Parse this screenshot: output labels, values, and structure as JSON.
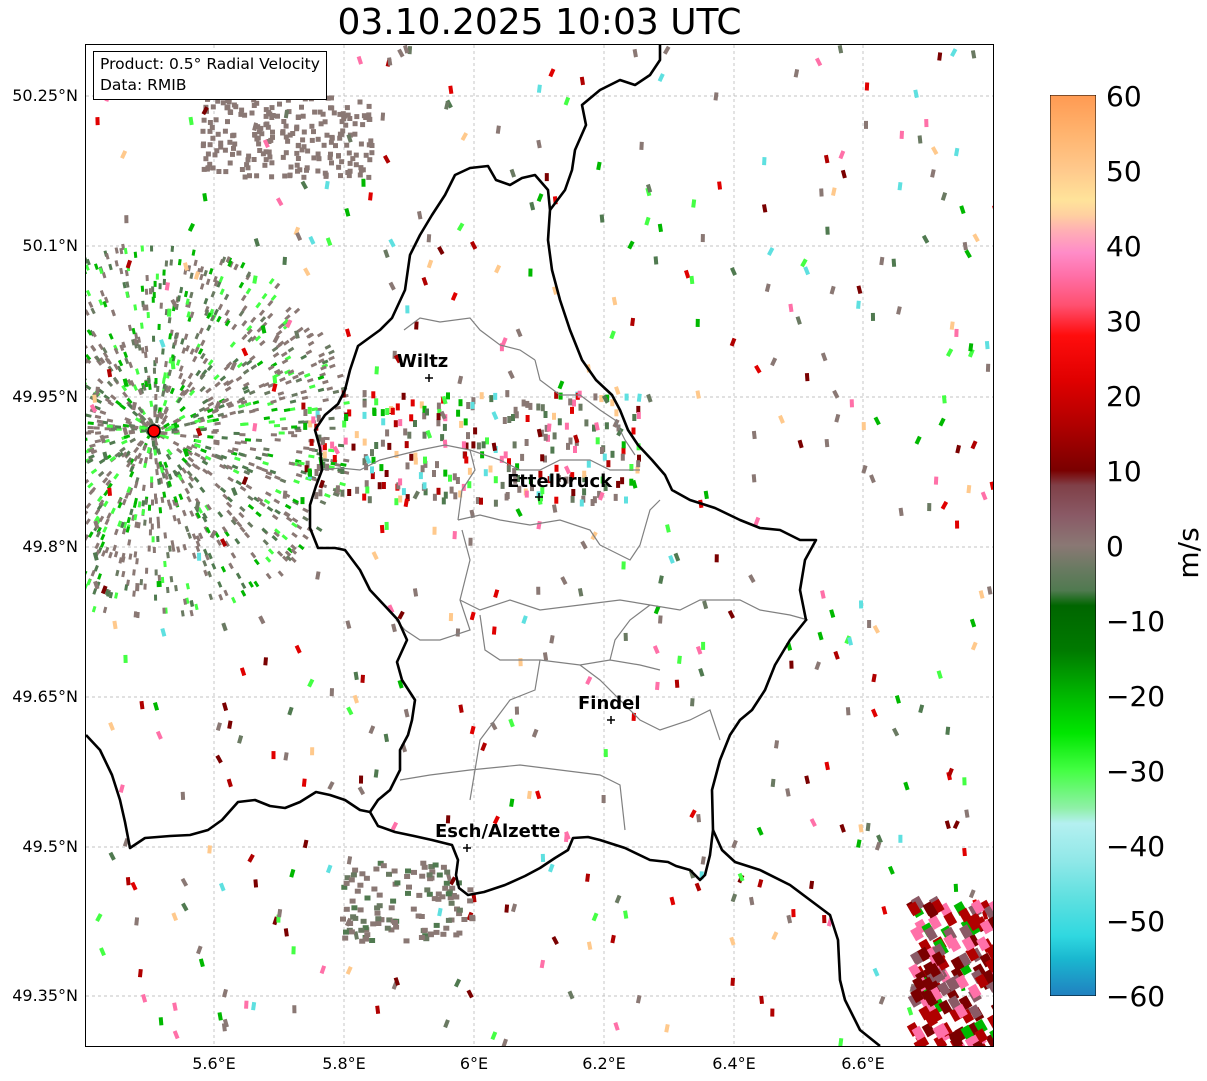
{
  "title": "03.10.2025 10:03 UTC",
  "info": {
    "product": "Product: 0.5° Radial Velocity",
    "source": "Data: RMIB"
  },
  "axes": {
    "lat_ticks": [
      "50.25°N",
      "50.1°N",
      "49.95°N",
      "49.8°N",
      "49.65°N",
      "49.5°N",
      "49.35°N"
    ],
    "lon_ticks": [
      "5.6°E",
      "5.8°E",
      "6°E",
      "6.2°E",
      "6.4°E",
      "6.6°E"
    ]
  },
  "cities": [
    {
      "name": "Wiltz"
    },
    {
      "name": "Ettelbruck"
    },
    {
      "name": "Findel"
    },
    {
      "name": "Esch/Alzette"
    }
  ],
  "colorbar": {
    "unit": "m/s",
    "ticks": [
      "60",
      "50",
      "40",
      "30",
      "20",
      "10",
      "0",
      "−10",
      "−20",
      "−30",
      "−40",
      "−50",
      "−60"
    ],
    "range": [
      -60,
      60
    ],
    "stops": [
      {
        "v": 60,
        "c": "#ff9a52"
      },
      {
        "v": 55,
        "c": "#ffb36e"
      },
      {
        "v": 50,
        "c": "#ffc98c"
      },
      {
        "v": 46,
        "c": "#ffe39a"
      },
      {
        "v": 44,
        "c": "#ffd0a0"
      },
      {
        "v": 42,
        "c": "#ffb0b4"
      },
      {
        "v": 39,
        "c": "#ff8cc8"
      },
      {
        "v": 36,
        "c": "#ff70a8"
      },
      {
        "v": 32,
        "c": "#ff5070"
      },
      {
        "v": 28,
        "c": "#ff0d0d"
      },
      {
        "v": 22,
        "c": "#e00000"
      },
      {
        "v": 16,
        "c": "#b00000"
      },
      {
        "v": 10,
        "c": "#7a0000"
      },
      {
        "v": 8,
        "c": "#804048"
      },
      {
        "v": 4,
        "c": "#8a5a66"
      },
      {
        "v": 0,
        "c": "#8a7874"
      },
      {
        "v": -3,
        "c": "#6a7a62"
      },
      {
        "v": -6,
        "c": "#507a50"
      },
      {
        "v": -8,
        "c": "#006600"
      },
      {
        "v": -14,
        "c": "#007a00"
      },
      {
        "v": -20,
        "c": "#00b800"
      },
      {
        "v": -25,
        "c": "#00e600"
      },
      {
        "v": -30,
        "c": "#44ff44"
      },
      {
        "v": -35,
        "c": "#90f0a8"
      },
      {
        "v": -37,
        "c": "#b4f0f0"
      },
      {
        "v": -42,
        "c": "#90e8e8"
      },
      {
        "v": -47,
        "c": "#5ee0e0"
      },
      {
        "v": -52,
        "c": "#30d8e0"
      },
      {
        "v": -55,
        "c": "#1ab8d0"
      },
      {
        "v": -60,
        "c": "#2080c0"
      }
    ]
  },
  "colors": {
    "border": "#000000",
    "canton_border": "#808080",
    "grid": "#b0b0b0",
    "radar_site": "#ff0000"
  }
}
